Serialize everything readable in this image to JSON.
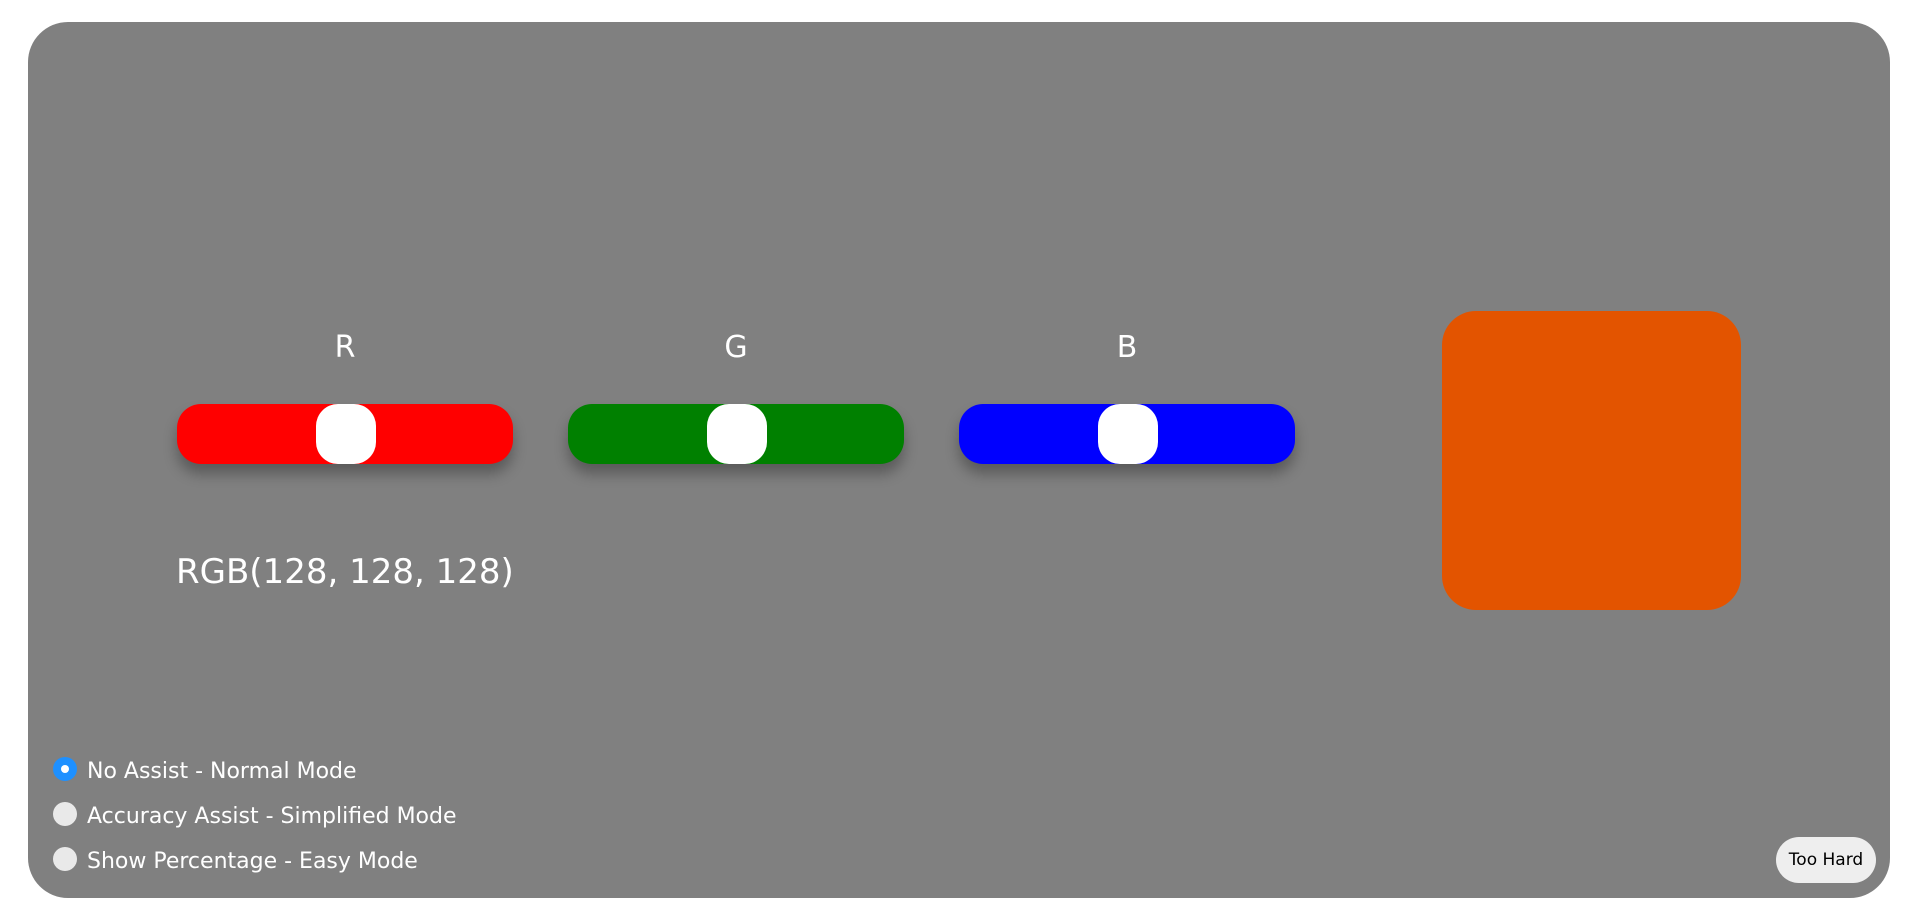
{
  "sliders": [
    {
      "channel": "R",
      "label": "R",
      "color": "#ff0000",
      "value": 128,
      "max": 255
    },
    {
      "channel": "G",
      "label": "G",
      "color": "#008000",
      "value": 128,
      "max": 255
    },
    {
      "channel": "B",
      "label": "B",
      "color": "#0000ff",
      "value": 128,
      "max": 255
    }
  ],
  "readout": "RGB(128, 128, 128)",
  "target_swatch": {
    "color": "#e35400"
  },
  "background_color": "#808080",
  "modes": [
    {
      "label": "No Assist - Normal Mode",
      "checked": true
    },
    {
      "label": "Accuracy Assist - Simplified Mode",
      "checked": false
    },
    {
      "label": "Show Percentage - Easy Mode",
      "checked": false
    }
  ],
  "too_hard_label": "Too Hard"
}
